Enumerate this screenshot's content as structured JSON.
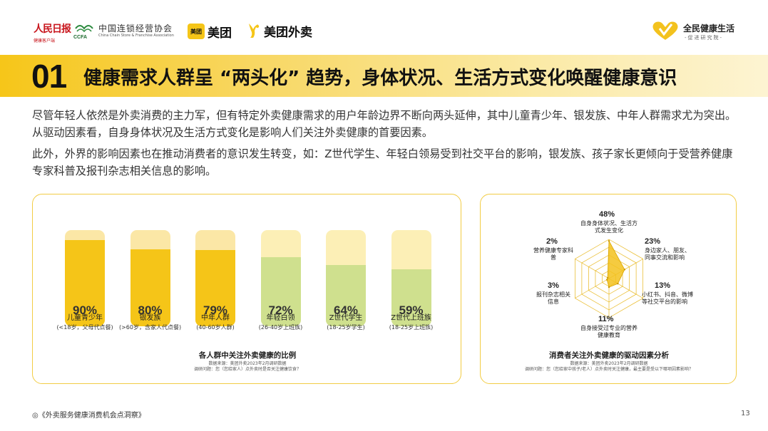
{
  "header": {
    "logo_rmrb": "人民日报",
    "logo_rmrb_sub": "健康客户端",
    "logo_ccfa_mark": "CCFA",
    "logo_ccfa_cn": "中国连锁经营协会",
    "logo_ccfa_en": "China Chain Store & Franchise Association",
    "logo_meituan_box": "美团",
    "logo_meituan": "美团",
    "logo_meituan_waimai": "美团外卖",
    "logo_qmjk": "全民健康生活",
    "logo_qmjk_sub": "-促进研究院-"
  },
  "title": {
    "number": "01",
    "text": "健康需求人群呈 “两头化” 趋势，身体状况、生活方式变化唤醒健康意识"
  },
  "paragraphs": [
    "尽管年轻人依然是外卖消费的主力军，但有特定外卖健康需求的用户年龄边界不断向两头延伸，其中儿童青少年、银发族、中年人群需求尤为突出。从驱动因素看，自身身体状况及生活方式变化是影响人们关注外卖健康的首要因素。",
    "此外，外界的影响因素也在推动消费者的意识发生转变，如：Z世代学生、年轻白领易受到社交平台的影响，银发族、孩子家长更倾向于受营养健康专家科普及报刊杂志相关信息的影响。"
  ],
  "left_panel": {
    "caption": "各人群中关注外卖健康的比例",
    "source": "数据来源：美团外卖2023年2月调研数据",
    "question": "调研问题：您（您给家人）点外卖时是否关注健康饮食？"
  },
  "right_panel": {
    "caption": "消费者关注外卖健康的驱动因素分析",
    "source": "数据来源：美团外卖2023年2月调研数据",
    "question": "调研问题：您（您给家中孩子/老人）点外卖时关注健康，最主要是受以下哪项因素影响？"
  },
  "chart_data": [
    {
      "type": "bar",
      "title": "各人群中关注外卖健康的比例",
      "categories": [
        "儿童青少年",
        "银发族",
        "中年人群",
        "年轻白领",
        "Z世代学生",
        "Z世代上班族"
      ],
      "subcategories": [
        "(<18岁，父母代点餐)",
        "(>60岁，含家人代点餐)",
        "(40-60岁人群)",
        "(26-40岁上班族)",
        "(18-25岁学生)",
        "(18-25岁上班族)"
      ],
      "values": [
        90,
        80,
        79,
        72,
        64,
        59
      ],
      "labels": [
        "90%",
        "80%",
        "79%",
        "72%",
        "64%",
        "59%"
      ],
      "ylim": [
        0,
        100
      ],
      "colors": {
        "highlight": "#f5c518",
        "highlight_bg": "#fbe7a6",
        "other": "#cfe08e",
        "other_bg": "#fcefb6"
      },
      "highlight_count": 3
    },
    {
      "type": "radar",
      "title": "消费者关注外卖健康的驱动因素分析",
      "axes": [
        {
          "label": "自身身体状况、生活方式发生变化",
          "value": 48,
          "text": "48%"
        },
        {
          "label": "身边家人、朋友、同事交流和影响",
          "value": 23,
          "text": "23%"
        },
        {
          "label": "小红书、抖音、微博等社交平台的影响",
          "value": 13,
          "text": "13%"
        },
        {
          "label": "自身接受过专业的营养健康教育",
          "value": 11,
          "text": "11%"
        },
        {
          "label": "报刊杂志相关信息",
          "value": 3,
          "text": "3%"
        },
        {
          "label": "营养健康专家科普",
          "value": 2,
          "text": "2%"
        }
      ],
      "max": 50,
      "rings": 5,
      "colors": {
        "grid": "#e8b820",
        "fill": "#f3c21e"
      }
    }
  ],
  "footer": {
    "report": "◎《外卖服务健康消费机会点洞察》",
    "page": "13"
  }
}
